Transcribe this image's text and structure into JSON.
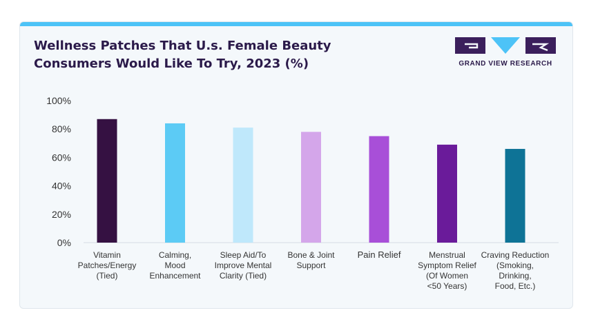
{
  "chart_data": {
    "type": "bar",
    "title_lines": [
      "Wellness Patches That U.s. Female Beauty",
      "Consumers Would Like To Try, 2023 (%)"
    ],
    "xlabel": "",
    "ylabel": "",
    "ylim": [
      0,
      100
    ],
    "y_ticks": [
      0,
      20,
      40,
      60,
      80,
      100
    ],
    "y_tick_labels": [
      "0%",
      "20%",
      "40%",
      "60%",
      "80%",
      "100%"
    ],
    "grid": false,
    "categories": [
      [
        "Vitamin",
        "Patches/Energy",
        "(Tied)"
      ],
      [
        "Calming,",
        "Mood",
        "Enhancement"
      ],
      [
        "Sleep Aid/To",
        "Improve Mental",
        "Clarity (Tied)"
      ],
      [
        "Bone & Joint",
        "Support"
      ],
      [
        "Pain Relief"
      ],
      [
        "Menstrual",
        "Symptom Relief",
        "(Of Women",
        "<50 Years)"
      ],
      [
        "Craving Reduction",
        "(Smoking,",
        "Drinking,",
        "Food, Etc.)"
      ]
    ],
    "values": [
      87,
      84,
      81,
      78,
      75,
      69,
      66
    ],
    "colors": [
      "#351142",
      "#5ccbf5",
      "#bfe8fb",
      "#d4a6ea",
      "#a84fd8",
      "#6a1b9a",
      "#0e7396"
    ]
  },
  "brand": {
    "name": "GRAND VIEW RESEARCH",
    "primary_color": "#3b1f5c",
    "accent_color": "#4dc3f7"
  }
}
